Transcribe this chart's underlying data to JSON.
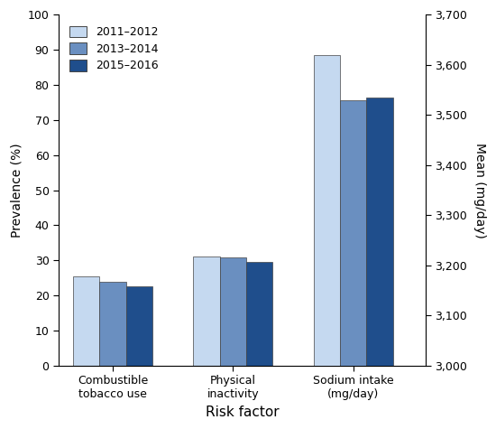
{
  "categories": [
    "Combustible\ntobacco use",
    "Physical\ninactivity",
    "Sodium intake\n(mg/day)"
  ],
  "series_labels": [
    "2011–2012",
    "2013–2014",
    "2015–2016"
  ],
  "colors": [
    "#c5d9f0",
    "#6a8fc0",
    "#1f4e8c"
  ],
  "bar_edge_color": "#444444",
  "prevalence_values": [
    [
      25.5,
      24.0,
      22.5
    ],
    [
      31.0,
      30.8,
      29.5
    ]
  ],
  "sodium_values": [
    3620,
    3530,
    3535
  ],
  "ylim_left": [
    0,
    100
  ],
  "ylim_right": [
    3000,
    3700
  ],
  "yticks_left": [
    0,
    10,
    20,
    30,
    40,
    50,
    60,
    70,
    80,
    90,
    100
  ],
  "yticks_right": [
    3000,
    3100,
    3200,
    3300,
    3400,
    3500,
    3600,
    3700
  ],
  "ylabel_left": "Prevalence (%)",
  "ylabel_right": "Mean (mg/day)",
  "xlabel": "Risk factor",
  "background_color": "#ffffff",
  "bar_width": 0.22,
  "group_positions": [
    0,
    1,
    2
  ],
  "xlim": [
    -0.45,
    2.6
  ]
}
